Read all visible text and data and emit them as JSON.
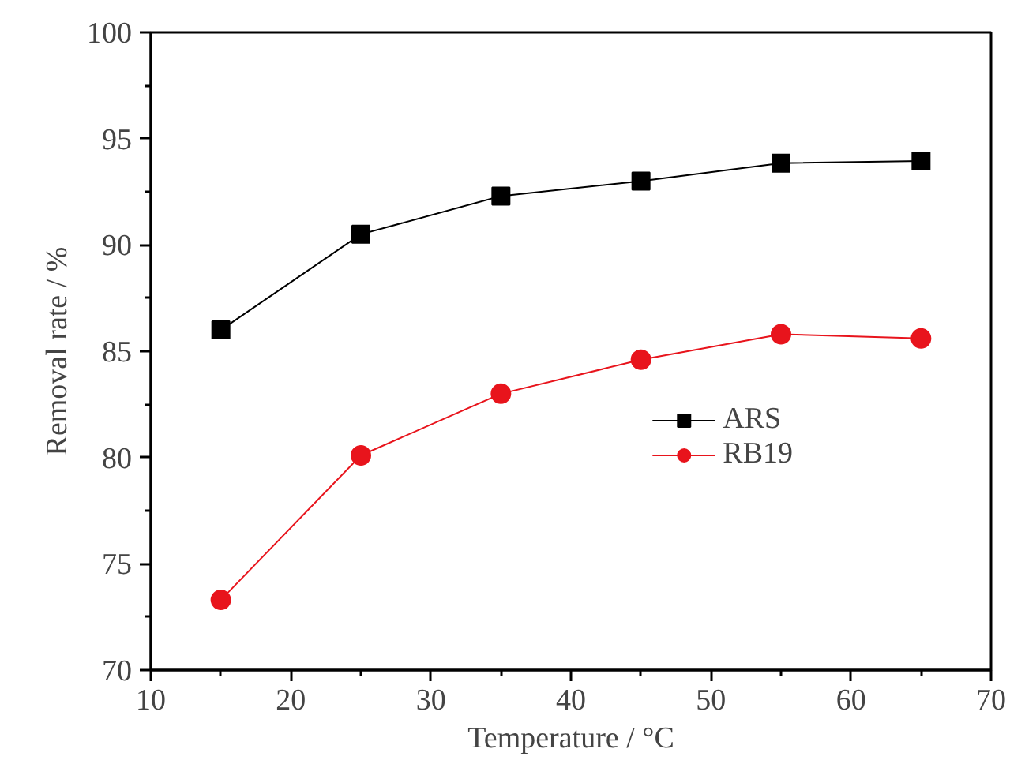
{
  "chart_data": {
    "type": "line",
    "xlabel": "Temperature / °C",
    "ylabel": "Removal rate / %",
    "x": [
      15,
      25,
      35,
      45,
      55,
      65
    ],
    "series": [
      {
        "name": "ARS",
        "color": "#000000",
        "marker": "square",
        "values": [
          86.0,
          90.5,
          92.3,
          93.0,
          93.85,
          93.95
        ]
      },
      {
        "name": "RB19",
        "color": "#e8141c",
        "marker": "circle",
        "values": [
          73.3,
          80.1,
          83.0,
          84.6,
          85.8,
          85.6
        ]
      }
    ],
    "xlim": [
      10,
      70
    ],
    "xticks": [
      10,
      20,
      30,
      40,
      50,
      60,
      70
    ],
    "ylim": [
      70,
      100
    ],
    "yticks": [
      70,
      75,
      80,
      85,
      90,
      95,
      100
    ],
    "grid": false,
    "legend": "bottom right",
    "line_style": "solid"
  }
}
